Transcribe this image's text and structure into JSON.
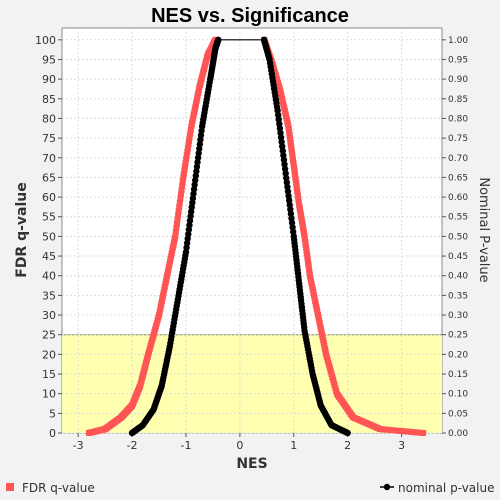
{
  "chart_data": {
    "type": "scatter",
    "title": "NES vs. Significance",
    "xlabel": "NES",
    "ylabel_left": "FDR q-value",
    "ylabel_right": "Nominal P-value",
    "xlim": [
      -3.3,
      3.75
    ],
    "ylim_left": [
      0,
      103
    ],
    "ylim_right": [
      0,
      1.03
    ],
    "x_ticks": [
      -3,
      -2,
      -1,
      0,
      1,
      2,
      3
    ],
    "y_left_ticks": [
      0,
      5,
      10,
      15,
      20,
      25,
      30,
      35,
      40,
      45,
      50,
      55,
      60,
      65,
      70,
      75,
      80,
      85,
      90,
      95,
      100
    ],
    "y_right_ticks": [
      "0.00",
      "0.05",
      "0.10",
      "0.15",
      "0.20",
      "0.25",
      "0.30",
      "0.35",
      "0.40",
      "0.45",
      "0.50",
      "0.55",
      "0.60",
      "0.65",
      "0.70",
      "0.75",
      "0.80",
      "0.85",
      "0.90",
      "0.95",
      "1.00"
    ],
    "grid": true,
    "highlight_band": {
      "axis": "left",
      "from": 0,
      "to": 25,
      "color": "#ffffb0"
    },
    "legend_position": "bottom",
    "series": [
      {
        "name": "FDR q-value",
        "axis": "left",
        "style": "markers",
        "color": "#ff5555",
        "curve_neg": [
          {
            "x": -2.8,
            "y": 0
          },
          {
            "x": -2.5,
            "y": 1
          },
          {
            "x": -2.2,
            "y": 4
          },
          {
            "x": -2.0,
            "y": 7
          },
          {
            "x": -1.85,
            "y": 12
          },
          {
            "x": -1.7,
            "y": 20
          },
          {
            "x": -1.5,
            "y": 30
          },
          {
            "x": -1.35,
            "y": 40
          },
          {
            "x": -1.2,
            "y": 50
          },
          {
            "x": -1.05,
            "y": 65
          },
          {
            "x": -0.9,
            "y": 78
          },
          {
            "x": -0.75,
            "y": 88
          },
          {
            "x": -0.6,
            "y": 96
          },
          {
            "x": -0.45,
            "y": 100
          }
        ],
        "curve_pos": [
          {
            "x": 0.45,
            "y": 100
          },
          {
            "x": 0.6,
            "y": 94
          },
          {
            "x": 0.75,
            "y": 87
          },
          {
            "x": 0.9,
            "y": 78
          },
          {
            "x": 1.0,
            "y": 68
          },
          {
            "x": 1.1,
            "y": 58
          },
          {
            "x": 1.2,
            "y": 50
          },
          {
            "x": 1.3,
            "y": 40
          },
          {
            "x": 1.45,
            "y": 30
          },
          {
            "x": 1.6,
            "y": 20
          },
          {
            "x": 1.8,
            "y": 10
          },
          {
            "x": 2.1,
            "y": 4
          },
          {
            "x": 2.6,
            "y": 1
          },
          {
            "x": 3.4,
            "y": 0
          }
        ]
      },
      {
        "name": "nominal p-value",
        "axis": "right",
        "style": "line-markers",
        "color": "#000000",
        "curve_neg": [
          {
            "x": -2.0,
            "y": 0.0
          },
          {
            "x": -1.8,
            "y": 0.02
          },
          {
            "x": -1.6,
            "y": 0.06
          },
          {
            "x": -1.45,
            "y": 0.12
          },
          {
            "x": -1.3,
            "y": 0.22
          },
          {
            "x": -1.15,
            "y": 0.34
          },
          {
            "x": -1.0,
            "y": 0.46
          },
          {
            "x": -0.85,
            "y": 0.62
          },
          {
            "x": -0.7,
            "y": 0.78
          },
          {
            "x": -0.55,
            "y": 0.9
          },
          {
            "x": -0.45,
            "y": 0.98
          },
          {
            "x": -0.4,
            "y": 1.0
          }
        ],
        "curve_pos": [
          {
            "x": 0.45,
            "y": 1.0
          },
          {
            "x": 0.55,
            "y": 0.95
          },
          {
            "x": 0.7,
            "y": 0.82
          },
          {
            "x": 0.85,
            "y": 0.66
          },
          {
            "x": 1.0,
            "y": 0.5
          },
          {
            "x": 1.1,
            "y": 0.38
          },
          {
            "x": 1.2,
            "y": 0.26
          },
          {
            "x": 1.35,
            "y": 0.15
          },
          {
            "x": 1.5,
            "y": 0.07
          },
          {
            "x": 1.7,
            "y": 0.02
          },
          {
            "x": 2.0,
            "y": 0.0
          }
        ]
      }
    ]
  }
}
